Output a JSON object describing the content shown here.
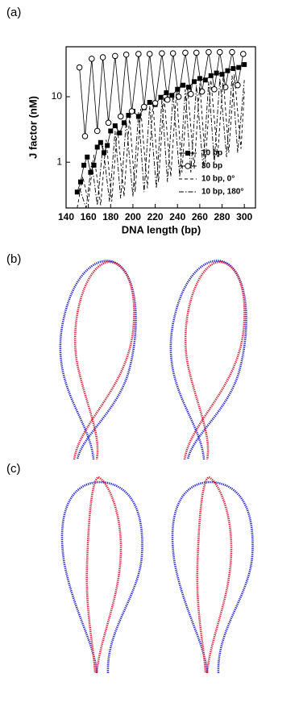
{
  "panel_labels": [
    "(a)",
    "(b)",
    "(c)"
  ],
  "chart_data": {
    "type": "line",
    "xlabel": "DNA length (bp)",
    "ylabel": "J factor (nM)",
    "xlim": [
      140,
      310
    ],
    "xticks": [
      140,
      160,
      180,
      200,
      220,
      240,
      260,
      280,
      300
    ],
    "ylim": [
      0.2,
      58
    ],
    "yticks": [
      1,
      10
    ],
    "log_y": true,
    "legend": "lower right",
    "series": [
      {
        "name": "10 bp",
        "color": "#000000",
        "marker": "square",
        "line_style": "solid",
        "x": [
          150,
          153,
          156,
          159,
          162,
          165,
          168,
          171,
          174,
          177,
          180,
          184,
          188,
          192,
          196,
          200,
          205,
          210,
          215,
          220,
          225,
          230,
          235,
          240,
          245,
          250,
          255,
          260,
          265,
          270,
          275,
          280,
          285,
          290,
          295,
          300
        ],
        "values": [
          0.35,
          0.5,
          0.9,
          1.2,
          0.7,
          0.9,
          1.7,
          2.0,
          1.4,
          1.8,
          3.0,
          3.6,
          2.8,
          4.0,
          5.2,
          6.0,
          5.0,
          6.8,
          8.2,
          7.6,
          9.8,
          11.5,
          10.5,
          13,
          15,
          14,
          17,
          19,
          18,
          21,
          23,
          22,
          25,
          27,
          28,
          31
        ]
      },
      {
        "name": "30 bp",
        "color": "#000000",
        "marker": "circle",
        "line_style": "solid",
        "x": [
          152,
          157,
          163,
          168,
          173,
          178,
          184,
          189,
          194,
          199,
          205,
          210,
          215,
          220,
          226,
          231,
          236,
          241,
          247,
          252,
          257,
          262,
          268,
          273,
          278,
          283,
          289,
          294,
          299
        ],
        "values": [
          28,
          2.5,
          38,
          3,
          40,
          4,
          42,
          5,
          44,
          6,
          45,
          7,
          45,
          8,
          46,
          9,
          46,
          10,
          47,
          11,
          47,
          12,
          48,
          13,
          48,
          14,
          48,
          15,
          45
        ]
      },
      {
        "name": "10 bp, 0°",
        "color": "#000000",
        "marker": null,
        "line_style": "dashed",
        "x": [
          150,
          155,
          160,
          165,
          171,
          176,
          181,
          186,
          192,
          197,
          202,
          207,
          213,
          218,
          223,
          228,
          234,
          239,
          244,
          249,
          255,
          260,
          265,
          270,
          276,
          281,
          286,
          291,
          297,
          300
        ],
        "values": [
          0.2,
          0.6,
          0.25,
          1.3,
          0.22,
          2.2,
          0.25,
          3.5,
          0.3,
          5,
          0.35,
          6.5,
          0.4,
          8,
          0.5,
          10,
          0.6,
          12,
          0.7,
          14,
          0.8,
          16,
          1,
          18,
          1.2,
          20,
          1.4,
          22,
          1.6,
          12
        ]
      },
      {
        "name": "10 bp, 180°",
        "color": "#000000",
        "marker": null,
        "line_style": "dashdot",
        "x": [
          152,
          158,
          163,
          168,
          173,
          179,
          184,
          189,
          194,
          200,
          205,
          210,
          215,
          221,
          226,
          231,
          236,
          242,
          247,
          252,
          257,
          263,
          268,
          273,
          278,
          284,
          289,
          294,
          300
        ],
        "values": [
          0.4,
          0.2,
          1,
          0.22,
          1.8,
          0.25,
          3,
          0.28,
          4.3,
          0.3,
          5.8,
          0.35,
          7.2,
          0.4,
          9,
          0.5,
          11,
          0.6,
          13,
          0.7,
          15,
          0.8,
          17,
          1,
          19,
          1.2,
          21,
          1.4,
          18
        ]
      }
    ]
  }
}
